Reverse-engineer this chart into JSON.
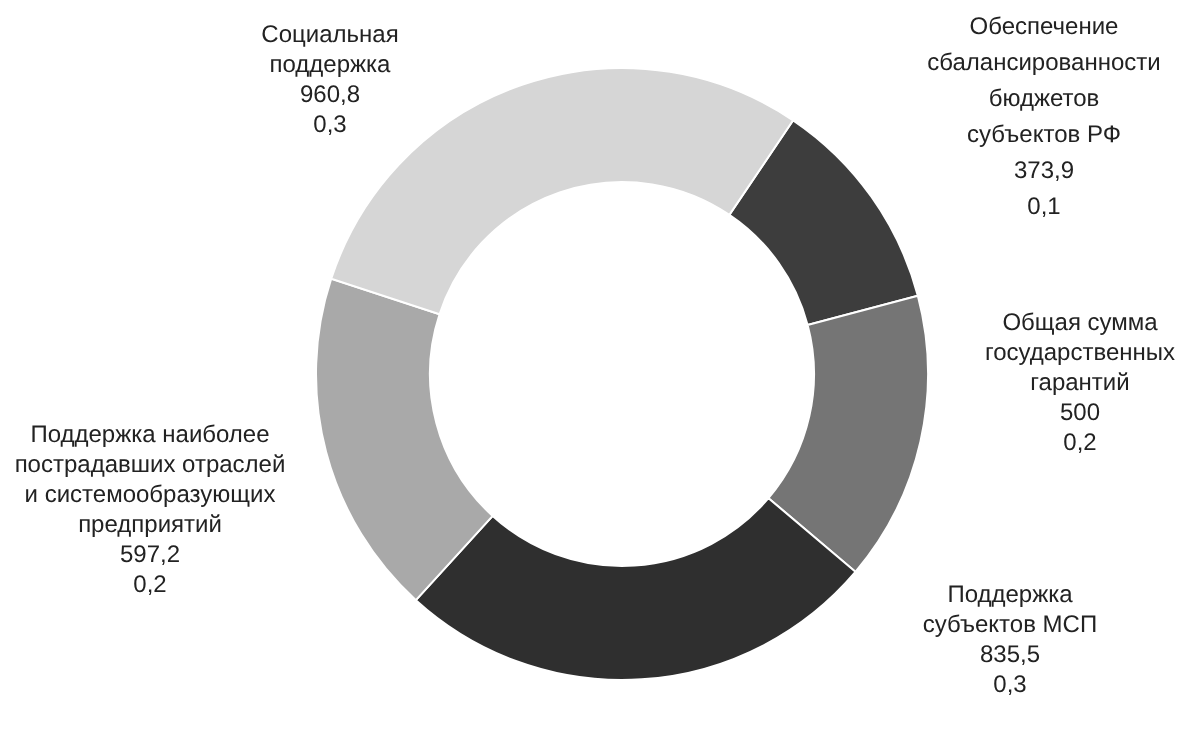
{
  "chart_data": {
    "type": "donut",
    "categories": [
      "Обеспечение сбалансированности бюджетов субъектов РФ",
      "Общая сумма государственных гарантий",
      "Поддержка субъектов МСП",
      "Поддержка наиболее пострадавших отраслей и системообразующих предприятий",
      "Социальная поддержка"
    ],
    "values": [
      373.9,
      500,
      835.5,
      597.2,
      960.8
    ],
    "colors": [
      "#3d3d3d",
      "#757575",
      "#2f2f2f",
      "#a9a9a9",
      "#d6d6d6"
    ],
    "value_labels": [
      "373,9\n0,1",
      "500\n0,2",
      "835,5\n0,3",
      "597,2\n0,2",
      "960,8\n0,3"
    ],
    "legend": false
  }
}
